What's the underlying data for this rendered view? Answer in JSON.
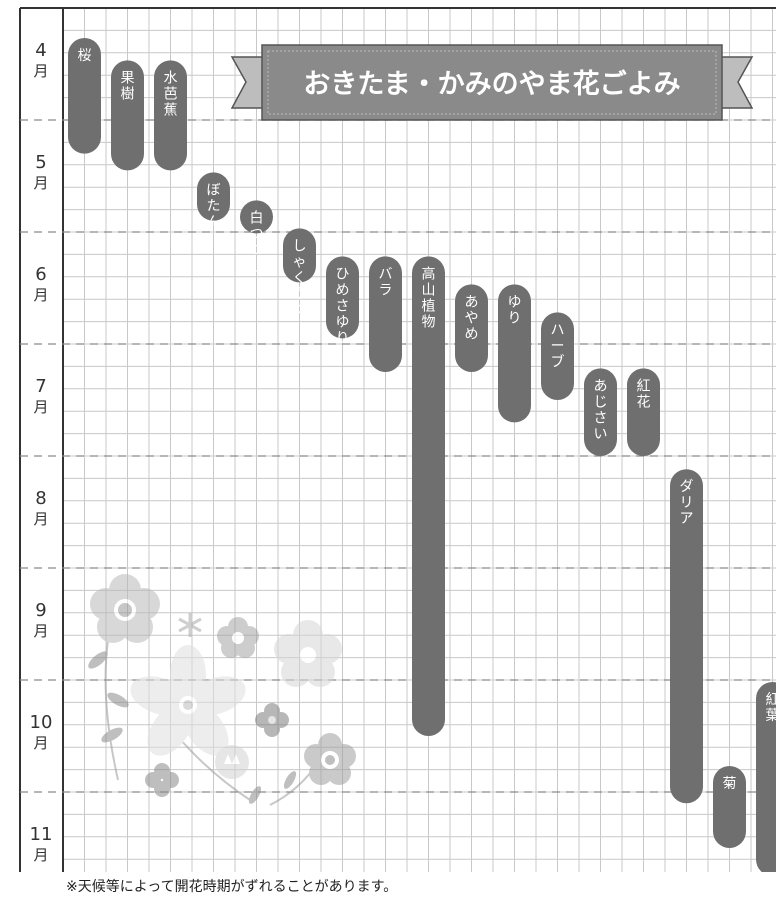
{
  "chart_data": {
    "type": "bar",
    "orientation": "vertical-timeline",
    "title": "おきたま・かみのやま花ごよみ",
    "note": "※天候等によって開花時期がずれることがあります。",
    "months": [
      {
        "num": "4",
        "unit": "月"
      },
      {
        "num": "5",
        "unit": "月"
      },
      {
        "num": "6",
        "unit": "月"
      },
      {
        "num": "7",
        "unit": "月"
      },
      {
        "num": "8",
        "unit": "月"
      },
      {
        "num": "9",
        "unit": "月"
      },
      {
        "num": "10",
        "unit": "月"
      },
      {
        "num": "11",
        "unit": "月"
      }
    ],
    "y_unit": "month (4 = start of April)",
    "ylim": [
      4,
      11.75
    ],
    "grid": true,
    "series": [
      {
        "name": "桜",
        "start": 4.0,
        "end": 5.3
      },
      {
        "name": "果樹",
        "start": 4.2,
        "end": 5.45
      },
      {
        "name": "水芭蕉",
        "start": 4.2,
        "end": 5.45
      },
      {
        "name": "ぼたん",
        "start": 5.2,
        "end": 5.9
      },
      {
        "name": "白つつじ",
        "start": 5.45,
        "end": 5.9
      },
      {
        "name": "しゃくやく",
        "start": 5.7,
        "end": 6.45
      },
      {
        "name": "ひめさゆり",
        "start": 5.95,
        "end": 6.95
      },
      {
        "name": "バラ",
        "start": 5.95,
        "end": 7.25
      },
      {
        "name": "高山植物",
        "start": 5.95,
        "end": 10.5
      },
      {
        "name": "あやめ",
        "start": 6.2,
        "end": 7.25
      },
      {
        "name": "ゆり",
        "start": 6.2,
        "end": 7.7
      },
      {
        "name": "ハーブ",
        "start": 6.45,
        "end": 7.5
      },
      {
        "name": "あじさい",
        "start": 6.95,
        "end": 8.0
      },
      {
        "name": "紅花",
        "start": 6.95,
        "end": 8.0
      },
      {
        "name": "ダリア",
        "start": 7.85,
        "end": 11.1
      },
      {
        "name": "菊",
        "start": 10.5,
        "end": 11.5
      },
      {
        "name": "紅葉",
        "start": 9.75,
        "end": 11.75
      }
    ]
  },
  "colors": {
    "bar": "#6f6f6f",
    "grid": "#c8c8c8",
    "banner": "#8a8a8a",
    "banner_dark": "#5e5e5e",
    "month_rule": "#8a8a8a"
  },
  "decoration": "flower-illustration"
}
